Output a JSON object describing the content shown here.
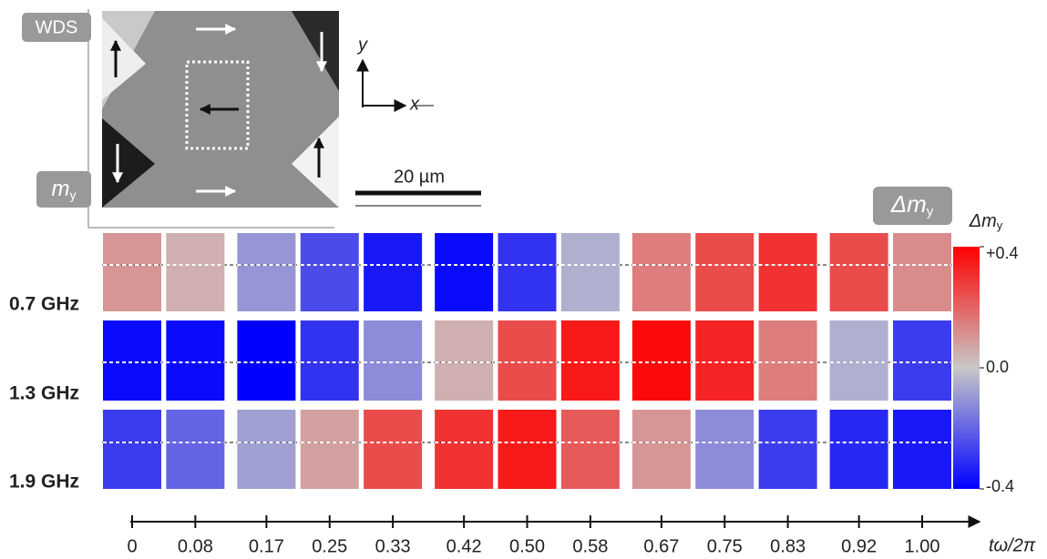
{
  "chart_data": {
    "type": "heatmap",
    "inset": {
      "top_label": "WDS",
      "bottom_label": {
        "main": "m",
        "sub": "y"
      },
      "scale_bar": "20 µm",
      "axis_y": "y",
      "axis_x": "x"
    },
    "badge": {
      "main": "Δm",
      "sub": "y"
    },
    "colorbar_label": {
      "main": "Δm",
      "sub": "y"
    },
    "xlabel": "tω/2π",
    "x": [
      0,
      0.08,
      0.17,
      0.25,
      0.33,
      0.42,
      {
        "value": 0.5,
        "label": "0.50"
      },
      0.58,
      0.67,
      0.75,
      0.83,
      0.92,
      {
        "value": 1,
        "label": "1.00"
      }
    ],
    "xlim": [
      0,
      1
    ],
    "series": [
      {
        "name": "0.7 GHz",
        "values": [
          0.1,
          0.05,
          -0.1,
          -0.25,
          -0.35,
          -0.38,
          -0.3,
          -0.05,
          0.15,
          0.25,
          0.3,
          0.25,
          0.12
        ]
      },
      {
        "name": "1.3 GHz",
        "values": [
          -0.38,
          -0.38,
          -0.4,
          -0.3,
          -0.12,
          0.05,
          0.25,
          0.35,
          0.38,
          0.33,
          0.15,
          -0.05,
          -0.28
        ]
      },
      {
        "name": "1.9 GHz",
        "values": [
          -0.28,
          -0.2,
          -0.08,
          0.08,
          0.25,
          0.3,
          0.35,
          0.22,
          0.1,
          -0.12,
          -0.28,
          -0.32,
          -0.35
        ]
      }
    ],
    "zlim": [
      -0.4,
      0.4
    ],
    "zticks": [
      {
        "value": 0.4,
        "label": "+0.4"
      },
      {
        "value": 0,
        "label": "0.0"
      },
      -0.4
    ],
    "colormap": [
      "#0000ff",
      "#c8c8c8",
      "#ff0000"
    ]
  }
}
